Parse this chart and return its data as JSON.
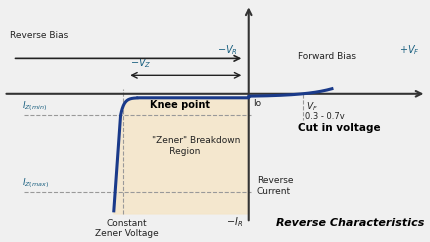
{
  "bg_color": "#f0f0f0",
  "curve_color": "#1a3a8a",
  "fill_color": "#f5e6c8",
  "fill_alpha": 0.85,
  "axis_color": "#333333",
  "text_color_blue": "#1a6080",
  "text_color_dark": "#222222",
  "text_color_black": "#000000",
  "xlim": [
    -5.5,
    4.0
  ],
  "ylim": [
    -4.5,
    3.0
  ],
  "vz_x": -2.8,
  "knee_y": -0.7,
  "iz_min_y": -0.7,
  "iz_max_y": -3.2,
  "vf_cut_x": 1.2,
  "title": "Reverse Characteristics"
}
